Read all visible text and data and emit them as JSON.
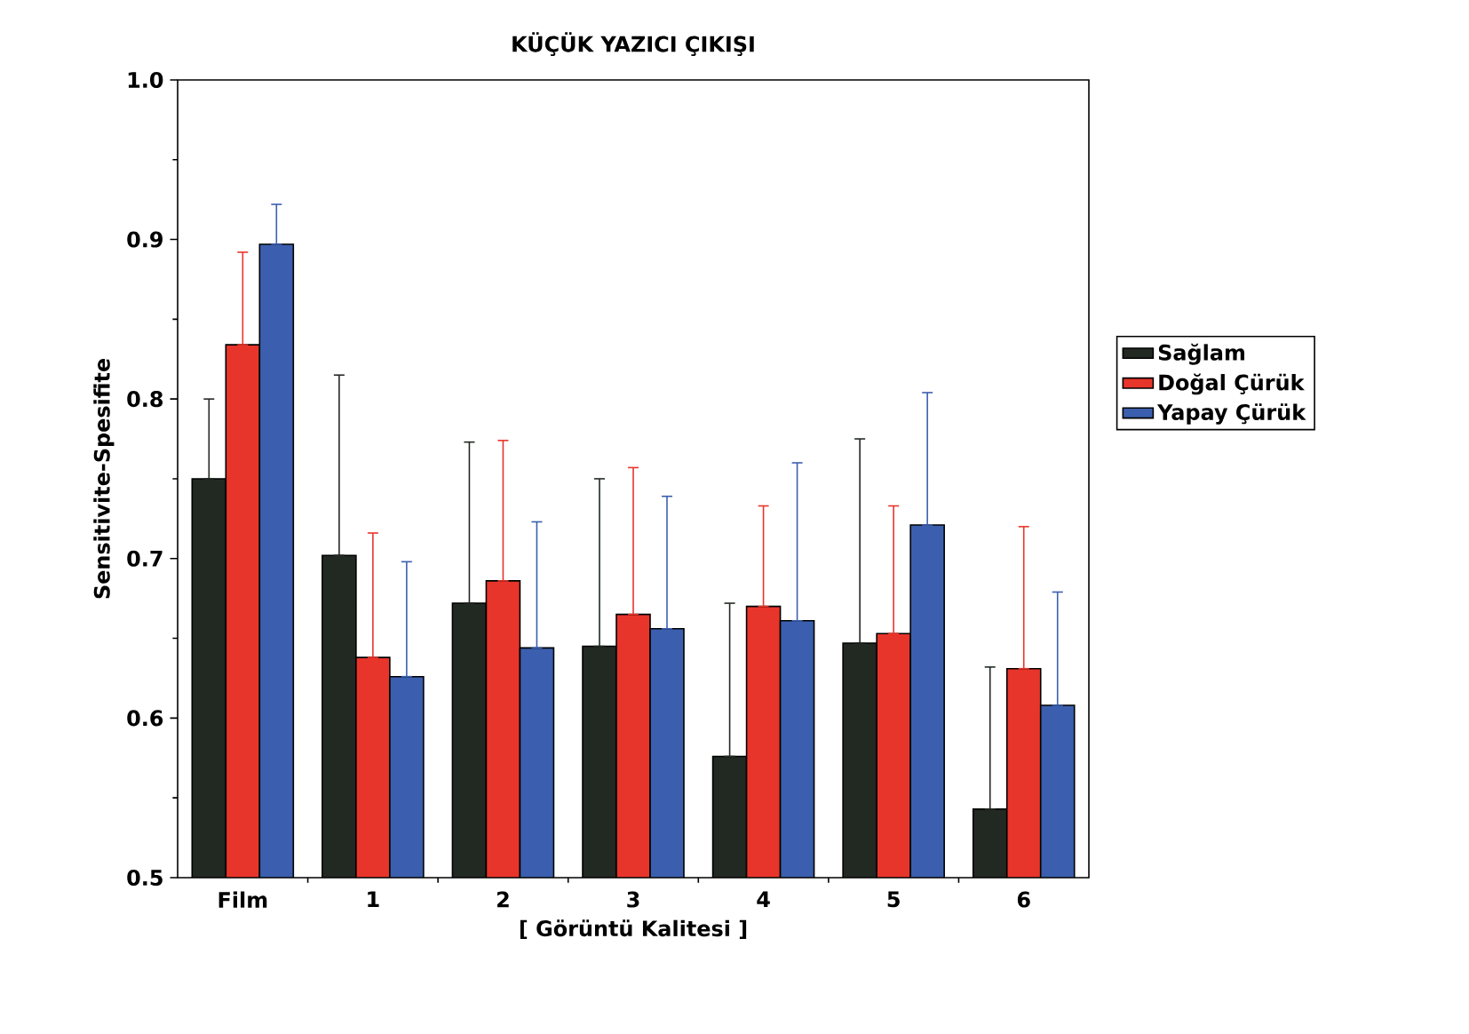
{
  "chart_data": {
    "type": "bar",
    "title": "KÜÇÜK YAZICI ÇIKIŞI",
    "xlabel": "[ Görüntü Kalitesi ]",
    "ylabel": "Sensitivite-Spesifite",
    "categories": [
      "Film",
      "1",
      "2",
      "3",
      "4",
      "5",
      "6"
    ],
    "series": [
      {
        "name": "Sağlam",
        "color": "#222822",
        "values": [
          0.75,
          0.702,
          0.672,
          0.645,
          0.576,
          0.647,
          0.543
        ],
        "errors": [
          [
            0.75,
            0.8
          ],
          [
            0.702,
            0.815
          ],
          [
            0.672,
            0.773
          ],
          [
            0.645,
            0.75
          ],
          [
            0.576,
            0.672
          ],
          [
            0.647,
            0.775
          ],
          [
            0.543,
            0.632
          ]
        ]
      },
      {
        "name": "Doğal Çürük",
        "color": "#e8352b",
        "values": [
          0.834,
          0.638,
          0.686,
          0.665,
          0.67,
          0.653,
          0.631
        ],
        "errors": [
          [
            0.834,
            0.892
          ],
          [
            0.638,
            0.716
          ],
          [
            0.686,
            0.774
          ],
          [
            0.665,
            0.757
          ],
          [
            0.67,
            0.733
          ],
          [
            0.653,
            0.733
          ],
          [
            0.631,
            0.72
          ]
        ]
      },
      {
        "name": "Yapay Çürük",
        "color": "#3b5fae",
        "values": [
          0.897,
          0.626,
          0.644,
          0.656,
          0.661,
          0.721,
          0.608
        ],
        "errors": [
          [
            0.897,
            0.922
          ],
          [
            0.626,
            0.698
          ],
          [
            0.644,
            0.723
          ],
          [
            0.656,
            0.739
          ],
          [
            0.661,
            0.76
          ],
          [
            0.721,
            0.804
          ],
          [
            0.608,
            0.679
          ]
        ]
      }
    ],
    "ylim": [
      0.5,
      1.0
    ],
    "yticks": [
      0.5,
      0.6,
      0.7,
      0.8,
      0.9,
      {
        "value": 1,
        "label": "1.0"
      }
    ],
    "grid": false,
    "legend": "right"
  }
}
